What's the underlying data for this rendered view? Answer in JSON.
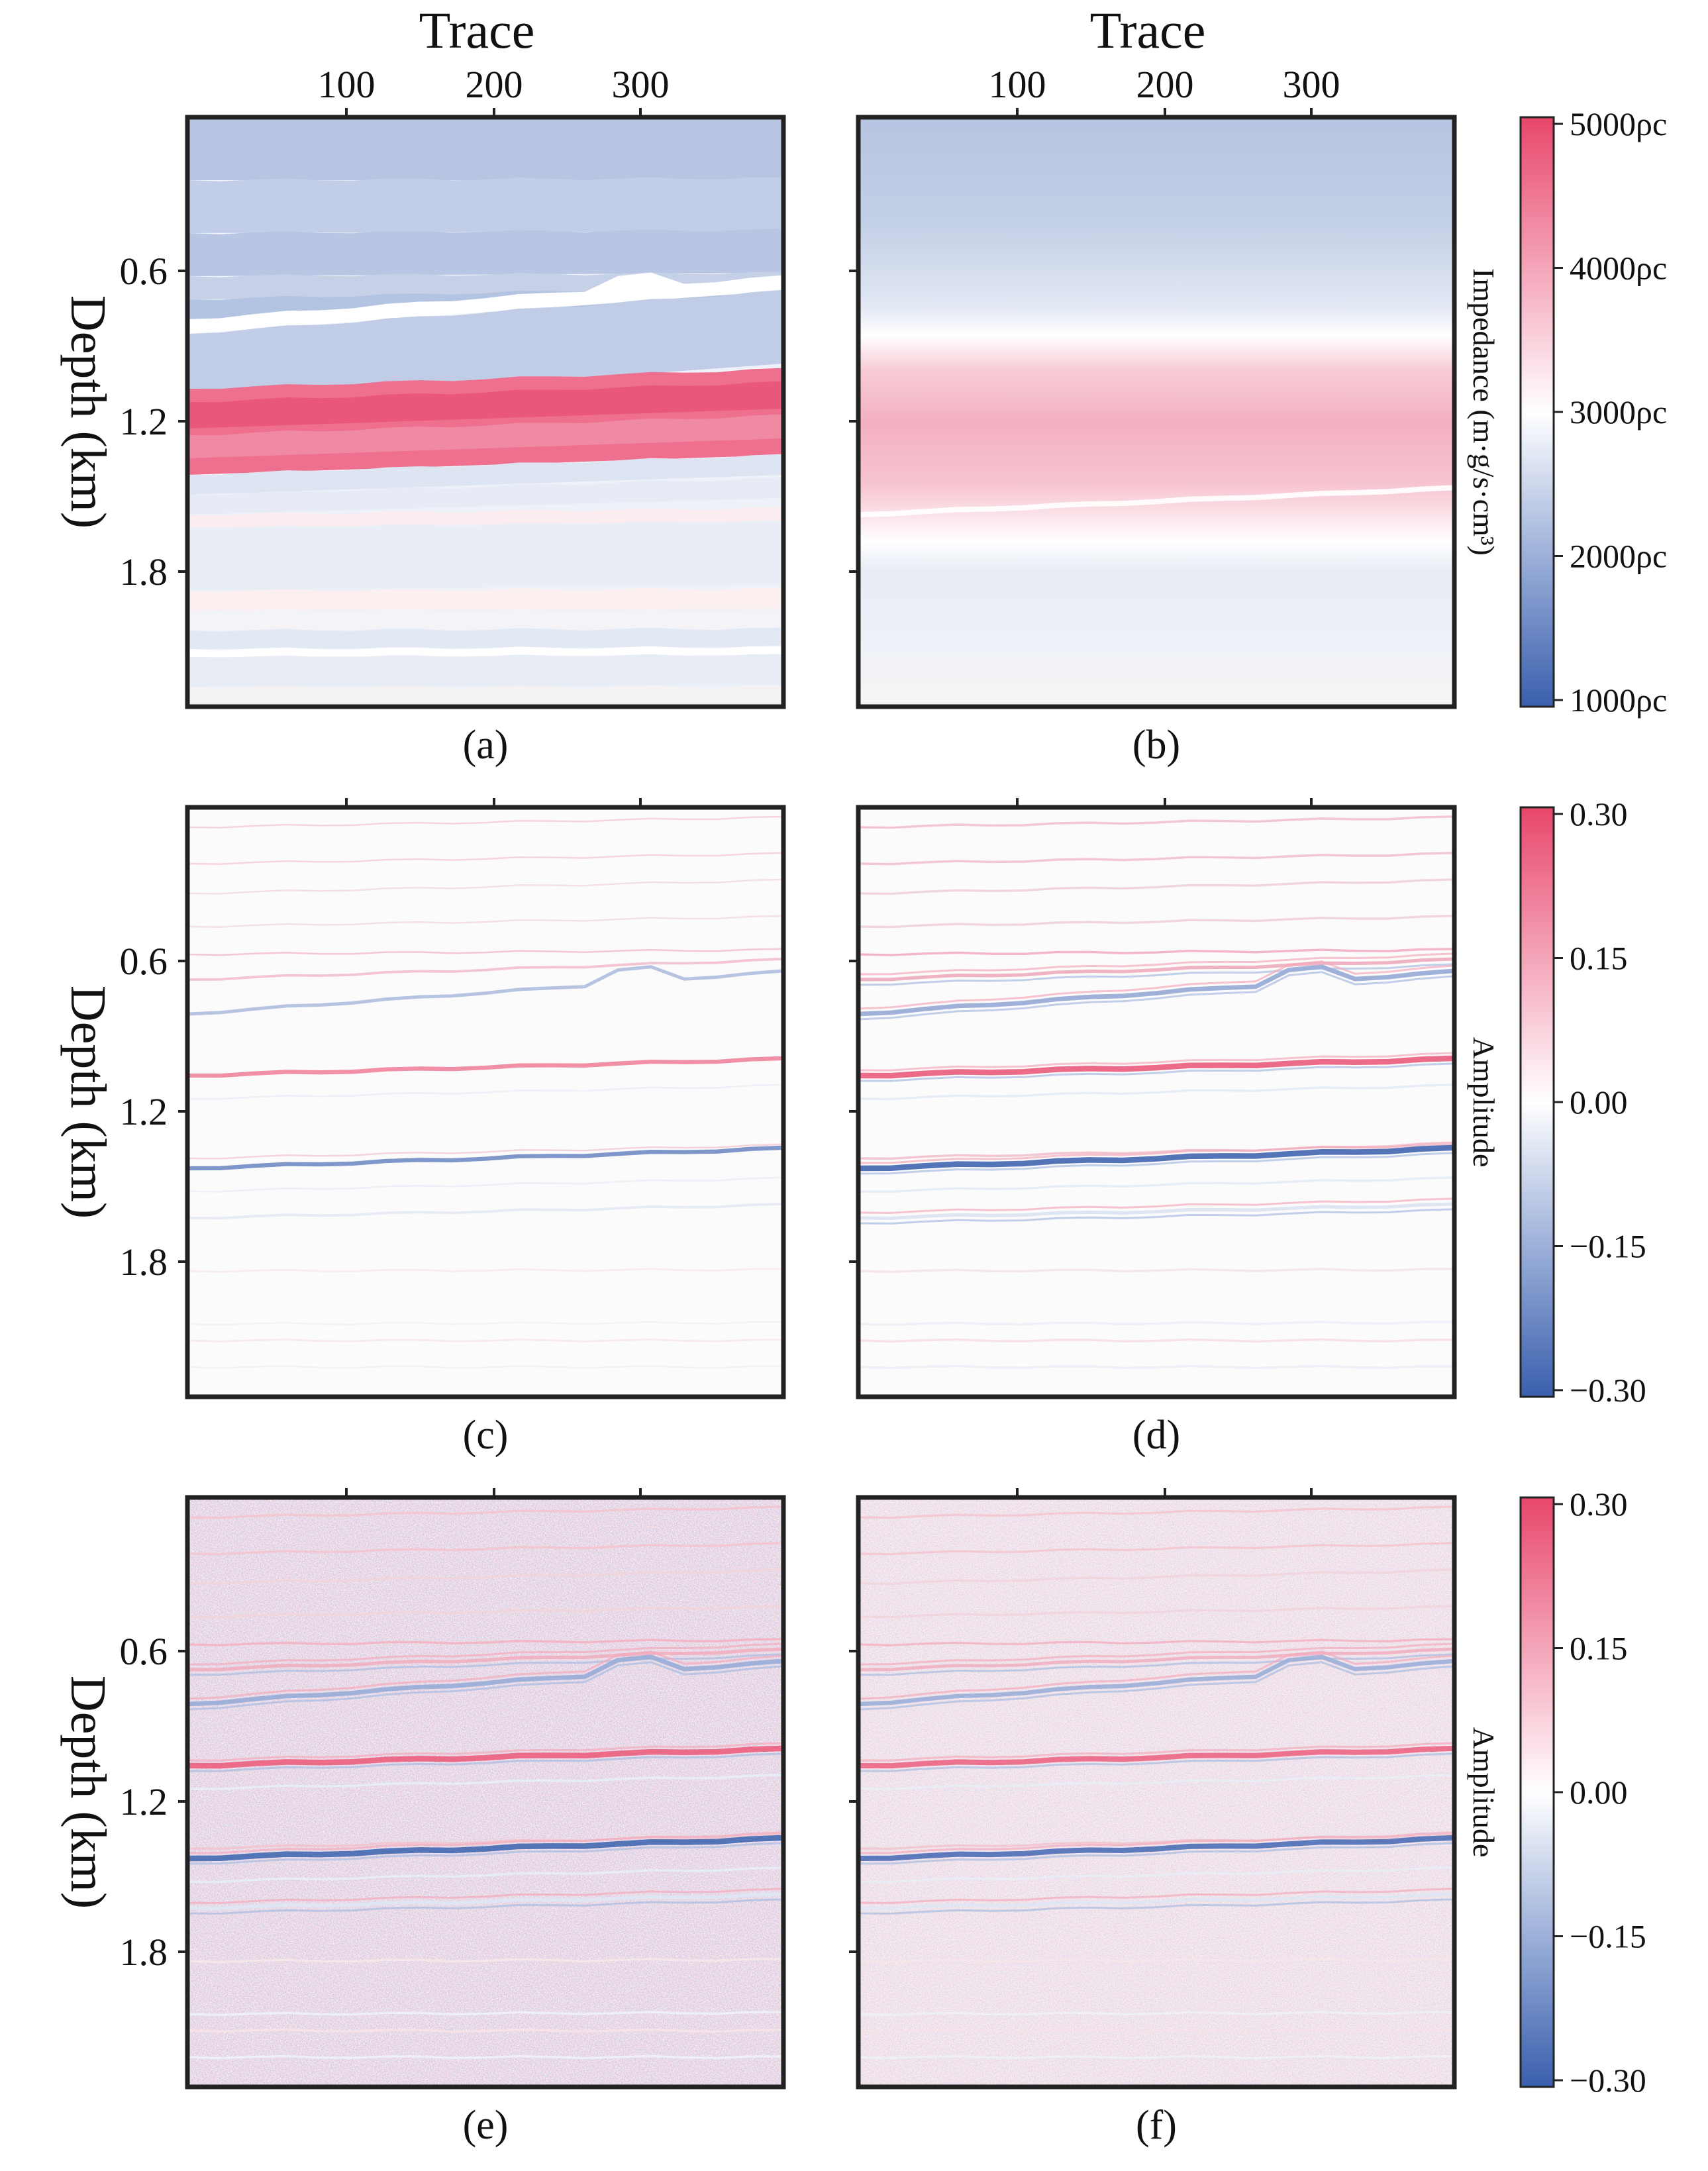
{
  "chart_data": {
    "type": "heatmap",
    "layout": "3 rows x 2 columns of seismic sections with shared colorbars per row",
    "x_axis": {
      "label": "Trace",
      "ticks": [
        "100",
        "200",
        "300"
      ]
    },
    "y_axis": {
      "label": "Depth (km)",
      "ticks": [
        "0.6",
        "1.2",
        "1.8"
      ]
    },
    "panels": [
      {
        "id": "a",
        "label": "(a)",
        "kind": "impedance",
        "variant": "true-blocky"
      },
      {
        "id": "b",
        "label": "(b)",
        "kind": "impedance",
        "variant": "smooth-initial"
      },
      {
        "id": "c",
        "label": "(c)",
        "kind": "amplitude",
        "variant": "reflectivity",
        "intensity": 0.55
      },
      {
        "id": "d",
        "label": "(d)",
        "kind": "amplitude",
        "variant": "synthetic",
        "intensity": 1.0
      },
      {
        "id": "e",
        "label": "(e)",
        "kind": "amplitude",
        "variant": "noisy",
        "noise_level": 0.22
      },
      {
        "id": "f",
        "label": "(f)",
        "kind": "amplitude",
        "variant": "noisy-denoised",
        "noise_level": 0.16
      }
    ],
    "colorbars": [
      {
        "row": 1,
        "title": "Impedance (m·g/s·cm³)",
        "ticks": [
          "5000ρc",
          "4000ρc",
          "3000ρc",
          "2000ρc",
          "1000ρc"
        ],
        "range": [
          1000,
          5000
        ]
      },
      {
        "row": 2,
        "title": "Amplitude",
        "ticks": [
          "0.30",
          "0.15",
          "0.00",
          "−0.15",
          "−0.30"
        ],
        "range": [
          -0.3,
          0.3
        ]
      },
      {
        "row": 3,
        "title": "Amplitude",
        "ticks": [
          "0.30",
          "0.15",
          "0.00",
          "−0.15",
          "−0.30"
        ],
        "range": [
          -0.3,
          0.3
        ]
      }
    ],
    "colormap": {
      "negative": "#3a5fad",
      "zero": "#ffffff",
      "positive": "#e8476b"
    }
  }
}
